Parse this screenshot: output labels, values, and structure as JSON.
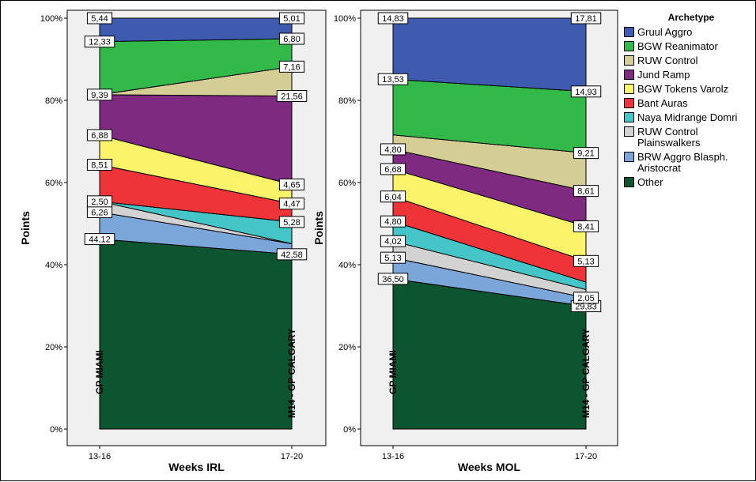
{
  "legend_title": "Archetype",
  "colors": {
    "Gruul Aggro": "#3f5bb0",
    "BGW Reanimator": "#33b84a",
    "RUW Control": "#d4cd96",
    "Jund Ramp": "#7d2a80",
    "BGW Tokens Varolz": "#fbf36a",
    "Bant Auras": "#ee3438",
    "Naya Midrange Domri": "#45c5c7",
    "RUW Control Plainswalkers": "#d2d2d2",
    "BRW  Aggro Blasph. Aristocrat": "#7ba6d9",
    "Other": "#0c5530"
  },
  "legend_labels": [
    "Gruul Aggro",
    "BGW Reanimator",
    "RUW Control",
    "Jund Ramp",
    "BGW Tokens Varolz",
    "Bant Auras",
    "Naya Midrange Domri",
    "RUW Control\nPlainswalkers",
    "BRW  Aggro Blasph.\nAristocrat",
    "Other"
  ],
  "chart_data": [
    {
      "type": "area",
      "stacked": true,
      "categories": [
        "13-16",
        "17-20"
      ],
      "xlabel": "Weeks IRL",
      "ylabel": "Points",
      "ylim": [
        0,
        100
      ],
      "y_ticks": [
        "0%",
        "20%",
        "40%",
        "60%",
        "80%",
        "100%"
      ],
      "vertical_labels": [
        "GP MIAMI",
        "M14 - GP CALGARY"
      ],
      "series": [
        {
          "name": "Other",
          "values": [
            44.12,
            42.58
          ],
          "labels": [
            "44,12",
            "42,58"
          ]
        },
        {
          "name": "BRW  Aggro Blasph. Aristocrat",
          "values": [
            6.26,
            2.6
          ],
          "labels": [
            "6,26",
            ""
          ]
        },
        {
          "name": "RUW Control Plainswalkers",
          "values": [
            2.5,
            0.0
          ],
          "labels": [
            "2,50",
            ""
          ]
        },
        {
          "name": "Naya Midrange Domri",
          "values": [
            0.0,
            5.28
          ],
          "labels": [
            "",
            "5,28"
          ]
        },
        {
          "name": "Bant Auras",
          "values": [
            8.51,
            4.47
          ],
          "labels": [
            "8,51",
            "4,47"
          ]
        },
        {
          "name": "BGW Tokens Varolz",
          "values": [
            6.88,
            4.65
          ],
          "labels": [
            "6,88",
            "4,65"
          ]
        },
        {
          "name": "Jund Ramp",
          "values": [
            9.39,
            21.56
          ],
          "labels": [
            "9,39",
            "21,56"
          ]
        },
        {
          "name": "RUW Control",
          "values": [
            0.0,
            7.16
          ],
          "labels": [
            "",
            "7,16"
          ]
        },
        {
          "name": "BGW Reanimator",
          "values": [
            12.33,
            6.8
          ],
          "labels": [
            "12,33",
            "6,80"
          ]
        },
        {
          "name": "Gruul Aggro",
          "values": [
            5.44,
            5.01
          ],
          "labels": [
            "5,44",
            "5,01"
          ]
        }
      ]
    },
    {
      "type": "area",
      "stacked": true,
      "categories": [
        "13-16",
        "17-20"
      ],
      "xlabel": "Weeks MOL",
      "ylabel": "Points",
      "ylim": [
        0,
        100
      ],
      "y_ticks": [
        "0%",
        "20%",
        "40%",
        "60%",
        "80%",
        "100%"
      ],
      "vertical_labels": [
        "GP MIAMI",
        "M14 - GP CALGARY"
      ],
      "series": [
        {
          "name": "Other",
          "values": [
            36.5,
            29.83
          ],
          "labels": [
            "36,50",
            "29,83"
          ]
        },
        {
          "name": "BRW  Aggro Blasph. Aristocrat",
          "values": [
            5.13,
            2.05
          ],
          "labels": [
            "5,13",
            "2,05"
          ]
        },
        {
          "name": "RUW Control Plainswalkers",
          "values": [
            4.02,
            2.0
          ],
          "labels": [
            "4,02",
            ""
          ]
        },
        {
          "name": "Naya Midrange Domri",
          "values": [
            4.8,
            1.8
          ],
          "labels": [
            "4,80",
            ""
          ]
        },
        {
          "name": "Bant Auras",
          "values": [
            6.04,
            5.13
          ],
          "labels": [
            "6,04",
            "5,13"
          ]
        },
        {
          "name": "BGW Tokens Varolz",
          "values": [
            6.68,
            8.41
          ],
          "labels": [
            "6,68",
            "8,41"
          ]
        },
        {
          "name": "Jund Ramp",
          "values": [
            4.8,
            8.61
          ],
          "labels": [
            "4,80",
            "8,61"
          ]
        },
        {
          "name": "RUW Control",
          "values": [
            3.5,
            9.21
          ],
          "labels": [
            "",
            "9,21"
          ]
        },
        {
          "name": "BGW Reanimator",
          "values": [
            13.53,
            14.93
          ],
          "labels": [
            "13,53",
            "14,93"
          ]
        },
        {
          "name": "Gruul Aggro",
          "values": [
            14.83,
            17.81
          ],
          "labels": [
            "14,83",
            "17,81"
          ]
        }
      ]
    }
  ]
}
